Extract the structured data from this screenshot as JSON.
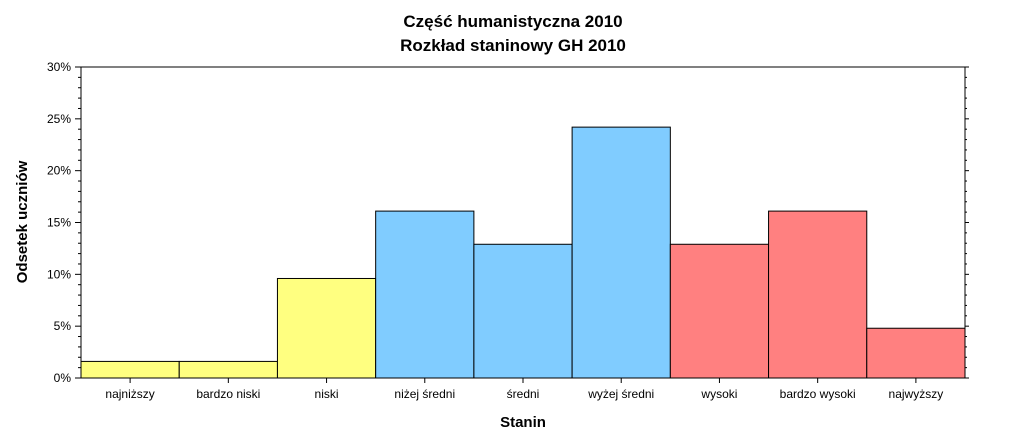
{
  "colors": {
    "background": "#ffffff",
    "low": "#ffff80",
    "mid": "#80ccff",
    "high": "#ff8080",
    "outline": "#000000"
  },
  "chart_data": {
    "type": "bar",
    "title": "Część humanistyczna 2010",
    "subtitle": "Rozkład staninowy GH 2010",
    "xlabel": "Stanin",
    "ylabel": "Odsetek uczniów",
    "ylim": [
      0,
      30
    ],
    "yticks": [
      0,
      5,
      10,
      15,
      20,
      25,
      30
    ],
    "ytick_labels": [
      "0%",
      "5%",
      "10%",
      "15%",
      "20%",
      "25%",
      "30%"
    ],
    "categories": [
      "najniższy",
      "bardzo niski",
      "niski",
      "niżej średni",
      "średni",
      "wyżej średni",
      "wysoki",
      "bardzo wysoki",
      "najwyższy"
    ],
    "values": [
      1.6,
      1.6,
      9.6,
      16.1,
      12.9,
      24.2,
      12.9,
      16.1,
      4.8
    ],
    "bar_groups": [
      "low",
      "low",
      "low",
      "mid",
      "mid",
      "mid",
      "high",
      "high",
      "high"
    ],
    "grid": false,
    "legend": "none"
  }
}
